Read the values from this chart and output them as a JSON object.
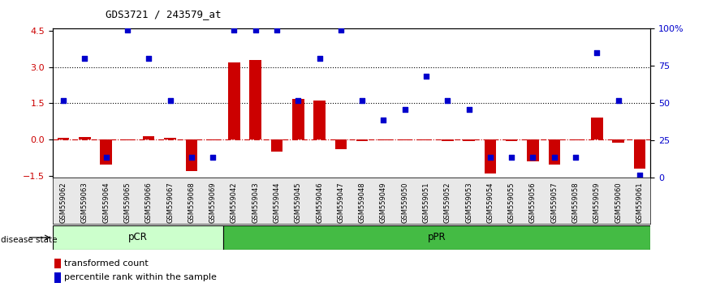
{
  "title": "GDS3721 / 243579_at",
  "samples": [
    "GSM559062",
    "GSM559063",
    "GSM559064",
    "GSM559065",
    "GSM559066",
    "GSM559067",
    "GSM559068",
    "GSM559069",
    "GSM559042",
    "GSM559043",
    "GSM559044",
    "GSM559045",
    "GSM559046",
    "GSM559047",
    "GSM559048",
    "GSM559049",
    "GSM559050",
    "GSM559051",
    "GSM559052",
    "GSM559053",
    "GSM559054",
    "GSM559055",
    "GSM559056",
    "GSM559057",
    "GSM559058",
    "GSM559059",
    "GSM559060",
    "GSM559061"
  ],
  "bar_values": [
    0.05,
    0.1,
    -1.05,
    -0.05,
    0.12,
    0.08,
    -1.3,
    -0.03,
    3.2,
    3.3,
    -0.5,
    1.7,
    1.6,
    -0.4,
    -0.08,
    -0.05,
    -0.05,
    -0.05,
    -0.08,
    -0.06,
    -1.4,
    -0.08,
    -0.9,
    -1.05,
    -0.05,
    0.9,
    -0.15,
    -1.2
  ],
  "percentile_values_pct": [
    52,
    80,
    14,
    99,
    80,
    52,
    14,
    14,
    99,
    99,
    99,
    52,
    80,
    99,
    52,
    39,
    46,
    68,
    52,
    46,
    14,
    14,
    14,
    14,
    14,
    84,
    52,
    2
  ],
  "pCR_count": 8,
  "pPR_count": 20,
  "bar_color": "#cc0000",
  "dot_color": "#0000cc",
  "ylim_left": [
    -1.6,
    4.6
  ],
  "ylim_right": [
    0,
    100
  ],
  "yticks_left": [
    -1.5,
    0.0,
    1.5,
    3.0,
    4.5
  ],
  "yticks_right": [
    0,
    25,
    50,
    75,
    100
  ],
  "legend_items": [
    "transformed count",
    "percentile rank within the sample"
  ],
  "pCR_color": "#ccffcc",
  "pPR_color": "#44bb44",
  "label_color_left": "#cc0000",
  "label_color_right": "#0000cc",
  "bg_color": "#e8e8e8"
}
